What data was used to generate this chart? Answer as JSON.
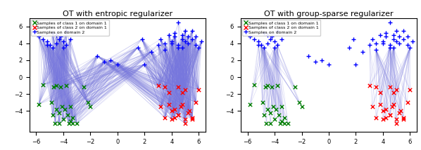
{
  "title_left": "OT with entropic regularizer",
  "title_right": "OT with group-sparse regularizer",
  "legend_labels": [
    "Samples of class 1 on domain 1",
    "Samples of class 2 on domain 1",
    "Samples on domain 2"
  ],
  "xlim": [
    -6.5,
    6.5
  ],
  "ylim": [
    -6.5,
    7.0
  ],
  "xticks": [
    -6,
    -4,
    -2,
    0,
    2,
    4,
    6
  ],
  "yticks": [
    -4,
    -2,
    0,
    2,
    4,
    6
  ],
  "line_color": "#7777dd",
  "line_alpha": 0.25,
  "line_lw": 0.5,
  "scatter_size": 15,
  "scatter_lw": 1.0
}
